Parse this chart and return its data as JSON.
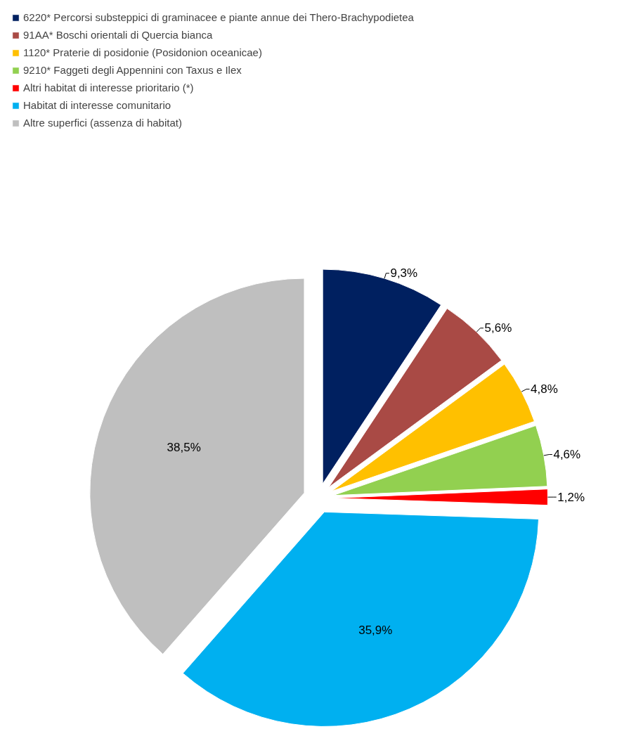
{
  "chart_data": {
    "type": "pie",
    "categories": [
      "6220* Percorsi substeppici di graminacee e piante annue dei Thero-Brachypodietea",
      "91AA* Boschi orientali di Quercia bianca",
      "1120* Praterie di posidonie (Posidonion oceanicae)",
      "9210* Faggeti degli Appennini con Taxus e Ilex",
      "Altri habitat di interesse prioritario (*)",
      "Habitat di interesse comunitario",
      "Altre superfici (assenza di habitat)"
    ],
    "values": [
      9.3,
      5.6,
      4.8,
      4.6,
      1.2,
      35.9,
      38.5
    ],
    "colors": [
      "#002060",
      "#a94a45",
      "#ffc000",
      "#92d050",
      "#ff0000",
      "#00b0f0",
      "#bfbfbf"
    ],
    "value_labels": [
      "9,3%",
      "5,6%",
      "4,8%",
      "4,6%",
      "1,2%",
      "35,9%",
      "38,5%"
    ],
    "legend": "top"
  }
}
